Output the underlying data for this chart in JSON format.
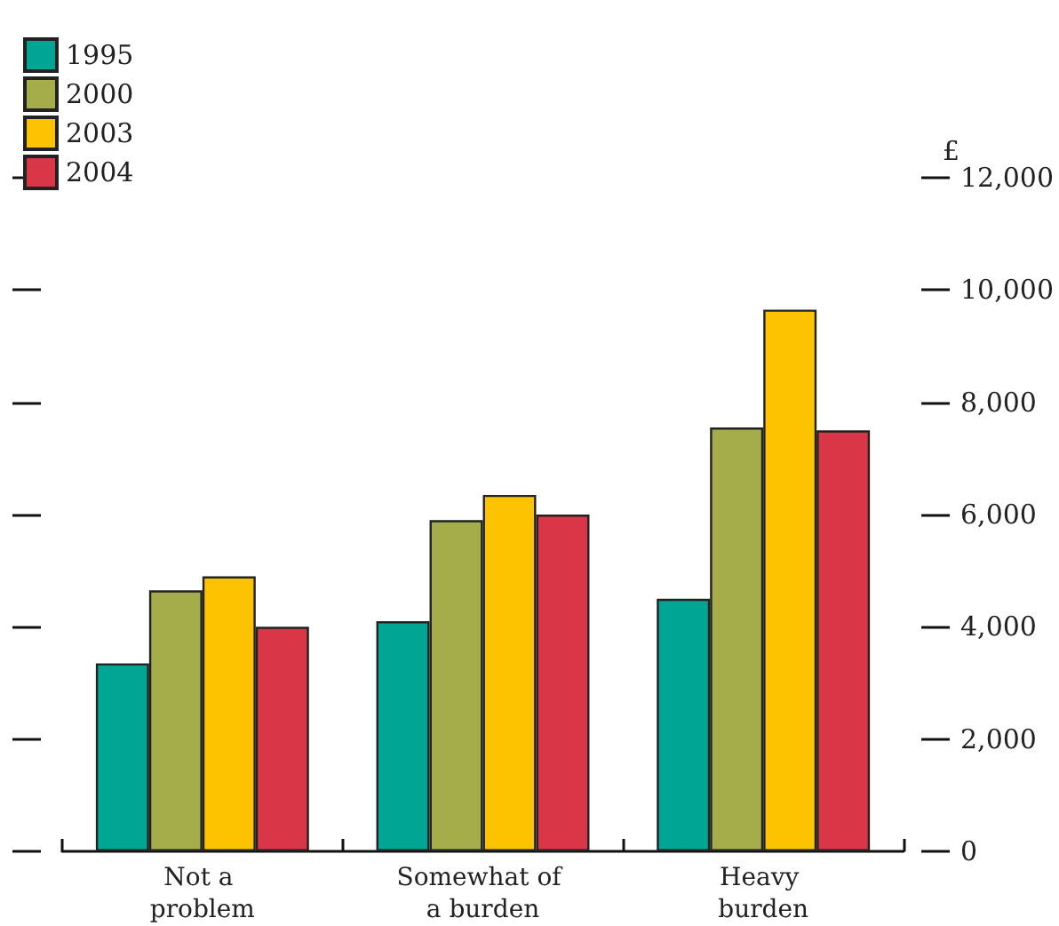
{
  "chart_data": {
    "type": "bar",
    "ylabel": "£",
    "categories": [
      "Not a problem",
      "Somewhat of a burden",
      "Heavy burden"
    ],
    "series": [
      {
        "name": "1995",
        "color": "#00a693",
        "values": [
          3350,
          4100,
          4500
        ]
      },
      {
        "name": "2000",
        "color": "#a5ad4b",
        "values": [
          4650,
          5900,
          7550
        ]
      },
      {
        "name": "2003",
        "color": "#fdc300",
        "values": [
          4900,
          6350,
          9650
        ]
      },
      {
        "name": "2004",
        "color": "#d93647",
        "values": [
          4000,
          6000,
          7500
        ]
      }
    ],
    "ylim": [
      0,
      12000
    ],
    "yticks": [
      0,
      {
        "value": 2000,
        "label": "2,000"
      },
      {
        "value": 4000,
        "label": "4,000"
      },
      {
        "value": 6000,
        "label": "6,000"
      },
      {
        "value": 8000,
        "label": "8,000"
      },
      {
        "value": 10000,
        "label": "10,000"
      },
      {
        "value": 12000,
        "label": "12,000"
      }
    ],
    "grid": false,
    "legend": "top left"
  }
}
